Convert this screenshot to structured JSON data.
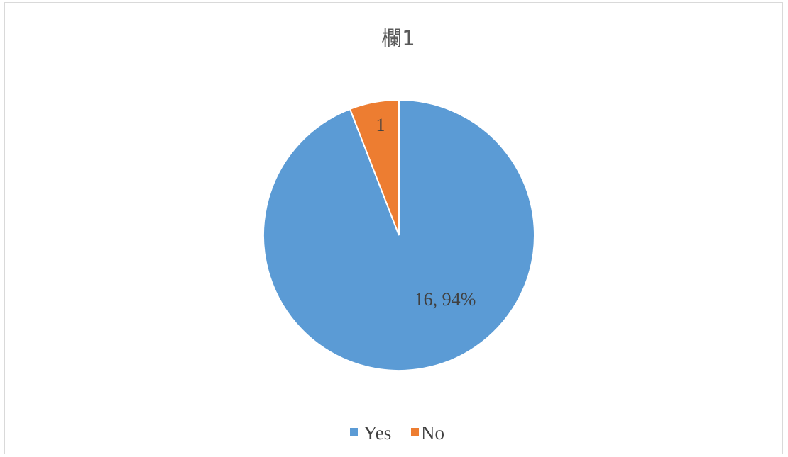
{
  "chart_data": {
    "type": "pie",
    "title": "欄1",
    "categories": [
      "Yes",
      "No"
    ],
    "values": [
      16,
      1
    ],
    "colors": [
      "#5b9bd5",
      "#ed7d31"
    ],
    "data_labels": [
      "16, 94%",
      "1"
    ],
    "legend": {
      "position": "bottom",
      "entries": [
        "Yes",
        "No"
      ]
    }
  }
}
